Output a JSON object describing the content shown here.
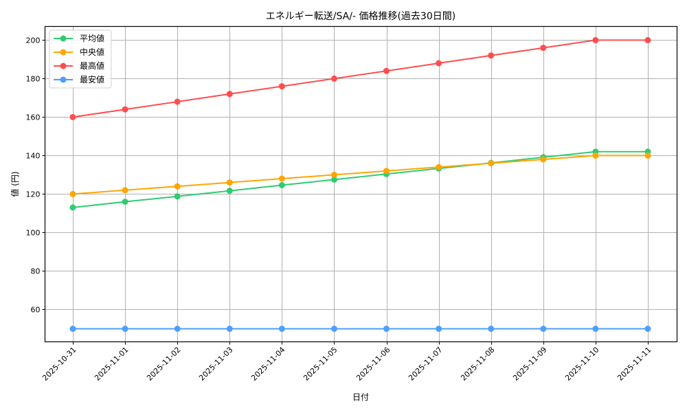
{
  "chart_data": {
    "type": "line",
    "title": "エネルギー転送/SA/- 価格推移(過去30日間)",
    "xlabel": "日付",
    "ylabel": "値 (円)",
    "x": [
      "2025-10-31",
      "2025-11-01",
      "2025-11-02",
      "2025-11-03",
      "2025-11-04",
      "2025-11-05",
      "2025-11-06",
      "2025-11-07",
      "2025-11-08",
      "2025-11-09",
      "2025-11-10",
      "2025-11-11"
    ],
    "series": [
      {
        "name": "平均値",
        "color": "#2ecc71",
        "values": [
          113,
          116,
          118.8,
          121.7,
          124.6,
          127.5,
          130.4,
          133.3,
          136.2,
          139.1,
          142,
          142
        ]
      },
      {
        "name": "中央値",
        "color": "#ffa500",
        "values": [
          120,
          122,
          124,
          126,
          128,
          130,
          132,
          134,
          136,
          138,
          140,
          140
        ]
      },
      {
        "name": "最高値",
        "color": "#ff4d4d",
        "values": [
          160,
          164,
          168,
          172,
          176,
          180,
          184,
          188,
          192,
          196,
          200,
          200
        ]
      },
      {
        "name": "最安値",
        "color": "#4d9eff",
        "values": [
          50,
          50,
          50,
          50,
          50,
          50,
          50,
          50,
          50,
          50,
          50,
          50
        ]
      }
    ],
    "yticks": [
      60,
      80,
      100,
      120,
      140,
      160,
      180,
      200
    ],
    "ylim": [
      43.2,
      207.1
    ],
    "grid": true,
    "legend_position": "upper left",
    "xtick_rotation": 45
  }
}
